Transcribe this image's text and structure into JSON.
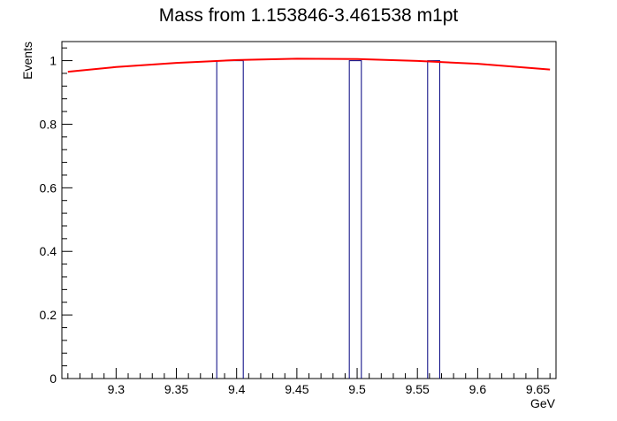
{
  "chart_data": {
    "type": "histogram",
    "title": "Mass from 1.153846-3.461538 m1pt",
    "xlabel": "GeV",
    "ylabel": "Events",
    "xlim": [
      9.255,
      9.665
    ],
    "ylim": [
      0,
      1.06
    ],
    "x_ticks": [
      9.3,
      9.35,
      9.4,
      9.45,
      9.5,
      9.55,
      9.6,
      9.65
    ],
    "x_tick_labels": [
      "9.3",
      "9.35",
      "9.4",
      "9.45",
      "9.5",
      "9.55",
      "9.6",
      "9.65"
    ],
    "y_ticks": [
      0,
      0.2,
      0.4,
      0.6,
      0.8,
      1
    ],
    "y_tick_labels": [
      "0",
      "0.2",
      "0.4",
      "0.6",
      "0.8",
      "1"
    ],
    "grid": false,
    "legend": "none",
    "series": [
      {
        "kind": "histogram-bins",
        "color": "#00007f",
        "bins": [
          {
            "x0": 9.3835,
            "x1": 9.4055,
            "value": 1
          },
          {
            "x0": 9.4935,
            "x1": 9.5035,
            "value": 1
          },
          {
            "x0": 9.5585,
            "x1": 9.5685,
            "value": 1
          }
        ]
      },
      {
        "kind": "fit-line",
        "color": "#ff0000",
        "x": [
          9.26,
          9.3,
          9.35,
          9.4,
          9.45,
          9.5,
          9.55,
          9.6,
          9.66
        ],
        "y": [
          0.965,
          0.98,
          0.993,
          1.002,
          1.006,
          1.005,
          0.999,
          0.99,
          0.972
        ]
      }
    ]
  }
}
